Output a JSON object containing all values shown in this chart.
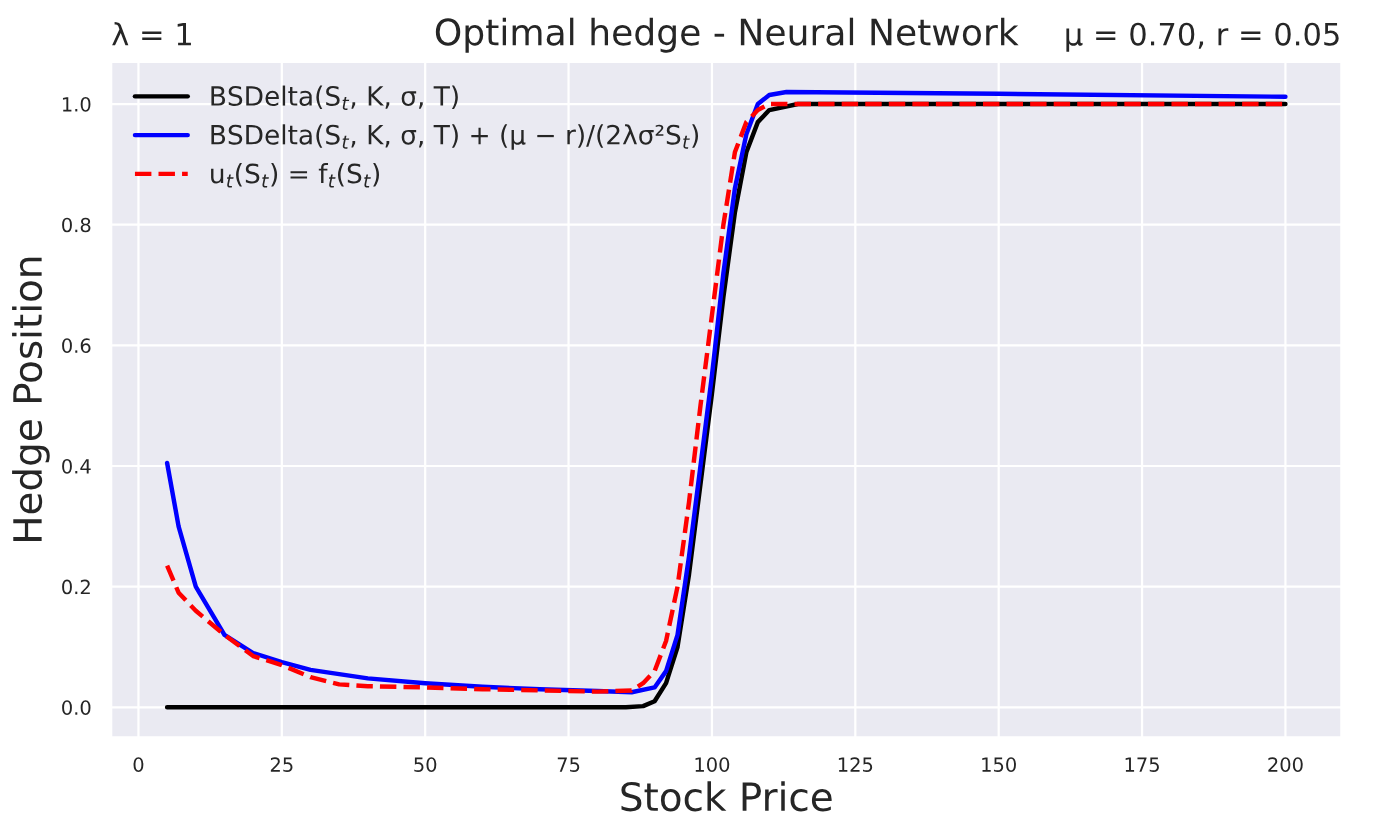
{
  "chart_data": {
    "type": "line",
    "title": "Optimal hedge - Neural Network",
    "xlabel": "Stock Price",
    "ylabel": "Hedge Position",
    "annotations": [
      "λ = 1",
      "μ = 0.70, r = 0.05"
    ],
    "xlim": [
      -4.75,
      209.75
    ],
    "ylim": [
      -0.05,
      1.07
    ],
    "xticks": [
      0,
      25,
      50,
      75,
      100,
      125,
      150,
      175,
      200
    ],
    "yticks": [
      {
        "value": 0,
        "label": "0.0"
      },
      0.2,
      0.4,
      0.6,
      0.8,
      {
        "value": 1,
        "label": "1.0"
      }
    ],
    "grid": true,
    "legend": "top left",
    "series": [
      {
        "name": "BSDelta(S$_{t}$, K, σ, T)",
        "color": "#000000",
        "line_style": "solid",
        "x": [
          5,
          85,
          88,
          90,
          92,
          94,
          96,
          98,
          100,
          102,
          104,
          106,
          108,
          110,
          115,
          200
        ],
        "values": [
          0,
          0,
          0.002,
          0.01,
          0.04,
          0.1,
          0.22,
          0.37,
          0.52,
          0.68,
          0.82,
          0.92,
          0.97,
          0.99,
          1.0,
          1.0
        ]
      },
      {
        "name": "BSDelta(S$_{t}$, K, σ, T) + (μ − r)/(2λσ²S$_{t}$)",
        "color": "#0000ff",
        "line_style": "solid",
        "x": [
          5,
          7,
          10,
          15,
          20,
          25,
          30,
          40,
          50,
          60,
          70,
          80,
          86,
          90,
          92,
          94,
          96,
          98,
          100,
          102,
          104,
          106,
          108,
          110,
          113,
          150,
          200
        ],
        "values": [
          0.405,
          0.3,
          0.2,
          0.12,
          0.09,
          0.075,
          0.062,
          0.048,
          0.04,
          0.034,
          0.03,
          0.027,
          0.025,
          0.033,
          0.06,
          0.12,
          0.25,
          0.4,
          0.55,
          0.72,
          0.86,
          0.95,
          1.0,
          1.015,
          1.02,
          1.017,
          1.012
        ]
      },
      {
        "name": "u$_{t}$(S$_{t}$) = f$_{t}$(S$_{t}$)",
        "color": "#ff0000",
        "line_style": "dashed",
        "x": [
          5,
          7,
          10,
          15,
          20,
          25,
          30,
          35,
          40,
          50,
          60,
          70,
          80,
          86,
          88,
          90,
          92,
          94,
          96,
          98,
          100,
          102,
          104,
          106,
          108,
          110,
          200
        ],
        "values": [
          0.235,
          0.19,
          0.16,
          0.12,
          0.085,
          0.07,
          0.05,
          0.038,
          0.035,
          0.033,
          0.03,
          0.028,
          0.026,
          0.028,
          0.04,
          0.06,
          0.11,
          0.2,
          0.34,
          0.5,
          0.65,
          0.8,
          0.92,
          0.97,
          0.99,
          1.0,
          1.0
        ]
      }
    ]
  }
}
